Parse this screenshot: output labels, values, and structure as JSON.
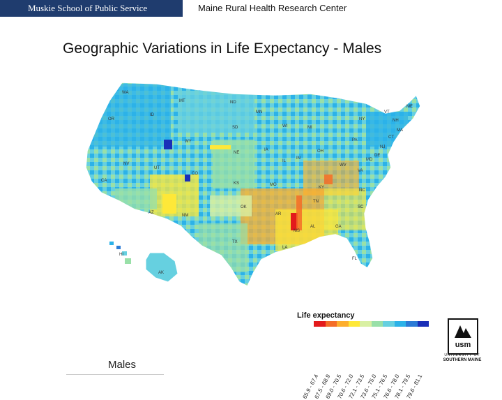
{
  "header": {
    "left_label": "Muskie School of Public Service",
    "right_label": "Maine Rural Health Research Center"
  },
  "title": "Geographic Variations in Life Expectancy - Males",
  "map": {
    "state_labels": [
      "WA",
      "OR",
      "ID",
      "MT",
      "ND",
      "MN",
      "WI",
      "MI",
      "NY",
      "VT",
      "ME",
      "NH",
      "MA",
      "CT",
      "NJ",
      "DE",
      "MD",
      "WY",
      "SD",
      "NE",
      "IA",
      "IL",
      "IN",
      "OH",
      "PA",
      "WV",
      "VA",
      "CA",
      "NV",
      "UT",
      "CO",
      "KS",
      "MO",
      "KY",
      "NC",
      "TN",
      "SC",
      "AZ",
      "NM",
      "OK",
      "AR",
      "MS",
      "AL",
      "GA",
      "TX",
      "LA",
      "FL",
      "AK",
      "HI"
    ]
  },
  "legend": {
    "title": "Life expectancy",
    "ranges": [
      "65.9 - 67.4",
      "67.5 - 68.9",
      "69.0 - 70.5",
      "70.6 - 72.0",
      "72.1 - 73.5",
      "73.6 - 75.0",
      "75.1 - 76.5",
      "76.6 - 78.0",
      "78.1 - 79.5",
      "79.6 - 81.1"
    ],
    "colors": [
      "#e31a1c",
      "#f46d27",
      "#fdae2c",
      "#fee838",
      "#d9f0a3",
      "#99e0a8",
      "#66d0e0",
      "#2cb2e8",
      "#2b7bd6",
      "#1a2fb8"
    ]
  },
  "caption": "Males",
  "logo": {
    "mark": "usm",
    "line1": "UNIVERSITY OF",
    "line2": "SOUTHERN MAINE"
  }
}
